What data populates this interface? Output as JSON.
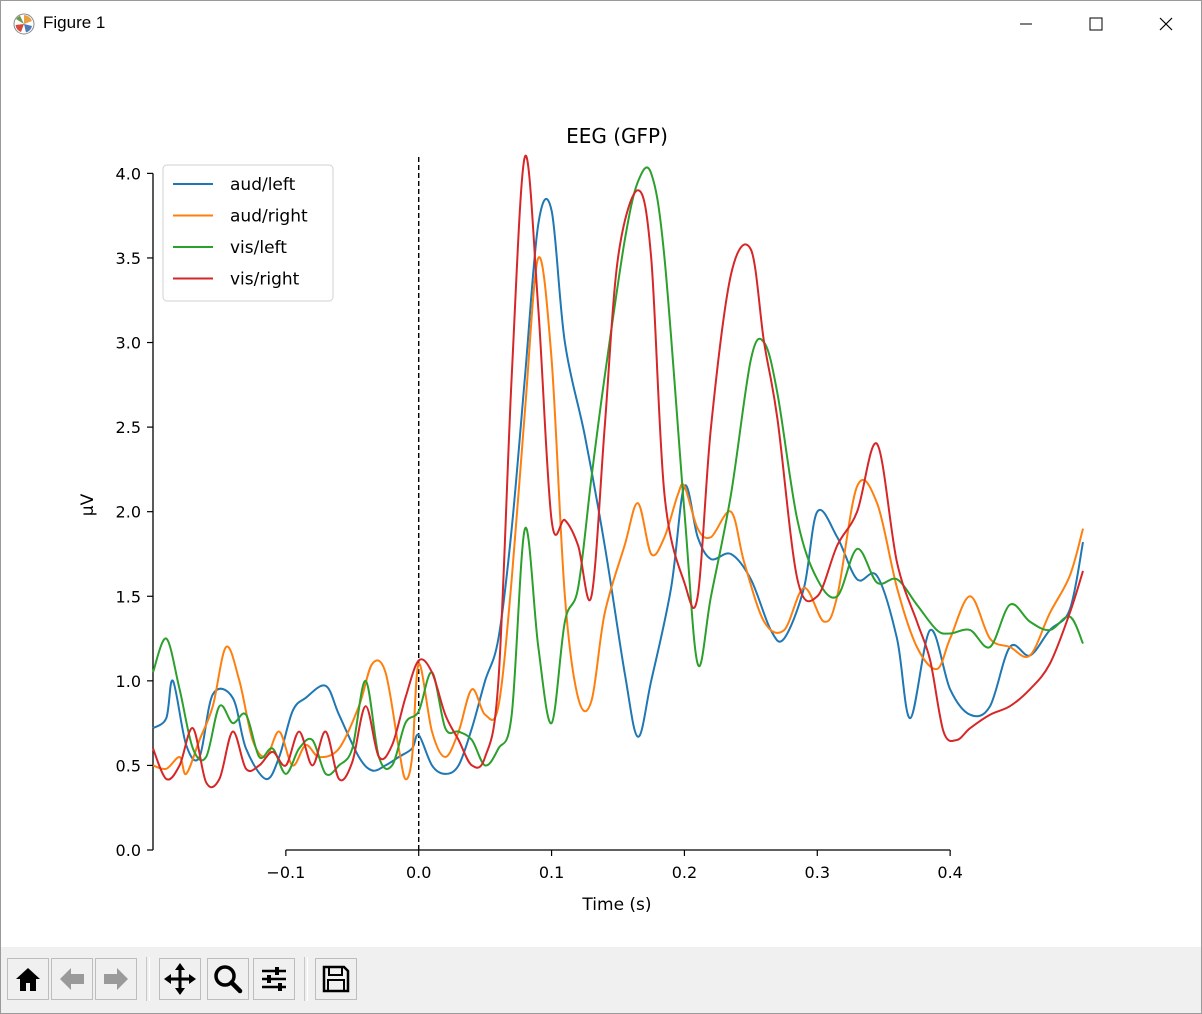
{
  "window": {
    "title": "Figure 1"
  },
  "toolbar": {
    "buttons": [
      {
        "name": "home-icon"
      },
      {
        "name": "back-icon"
      },
      {
        "name": "forward-icon"
      },
      {
        "name": "pan-icon"
      },
      {
        "name": "zoom-icon"
      },
      {
        "name": "configure-subplots-icon"
      },
      {
        "name": "save-icon"
      }
    ]
  },
  "chart_data": {
    "type": "line",
    "title": "EEG (GFP)",
    "xlabel": "Time (s)",
    "ylabel": "µV",
    "xlim": [
      -0.2,
      0.5
    ],
    "ylim": [
      0,
      4.15
    ],
    "xticks": [
      -0.1,
      0.0,
      0.1,
      0.2,
      0.3,
      0.4
    ],
    "xtick_labels": [
      "−0.1",
      "0.0",
      "0.1",
      "0.2",
      "0.3",
      "0.4"
    ],
    "yticks": [
      0.0,
      0.5,
      1.0,
      1.5,
      2.0,
      2.5,
      3.0,
      3.5,
      4.0
    ],
    "ytick_labels": [
      "0.0",
      "0.5",
      "1.0",
      "1.5",
      "2.0",
      "2.5",
      "3.0",
      "3.5",
      "4.0"
    ],
    "vline_x": 0.0,
    "legend_position": "top-left",
    "series": [
      {
        "name": "aud/left",
        "color": "#1f77b4",
        "x": [
          -0.2,
          -0.19,
          -0.185,
          -0.175,
          -0.165,
          -0.155,
          -0.14,
          -0.13,
          -0.115,
          -0.105,
          -0.095,
          -0.085,
          -0.07,
          -0.06,
          -0.045,
          -0.035,
          -0.025,
          -0.015,
          -0.005,
          0.0,
          0.01,
          0.02,
          0.03,
          0.04,
          0.05,
          0.06,
          0.07,
          0.08,
          0.09,
          0.1,
          0.11,
          0.125,
          0.14,
          0.155,
          0.165,
          0.175,
          0.19,
          0.2,
          0.21,
          0.22,
          0.235,
          0.25,
          0.265,
          0.275,
          0.29,
          0.3,
          0.315,
          0.33,
          0.345,
          0.36,
          0.37,
          0.385,
          0.4,
          0.415,
          0.43,
          0.445,
          0.46,
          0.475,
          0.49,
          0.5
        ],
        "y": [
          0.72,
          0.78,
          1.0,
          0.62,
          0.55,
          0.92,
          0.9,
          0.6,
          0.42,
          0.55,
          0.82,
          0.9,
          0.97,
          0.8,
          0.55,
          0.47,
          0.5,
          0.55,
          0.6,
          0.68,
          0.5,
          0.45,
          0.5,
          0.72,
          1.0,
          1.25,
          1.9,
          2.8,
          3.7,
          3.78,
          3.0,
          2.45,
          1.8,
          1.05,
          0.67,
          1.0,
          1.55,
          2.15,
          1.85,
          1.72,
          1.75,
          1.6,
          1.3,
          1.25,
          1.55,
          2.0,
          1.85,
          1.6,
          1.62,
          1.25,
          0.78,
          1.3,
          0.95,
          0.8,
          0.85,
          1.2,
          1.15,
          1.3,
          1.42,
          1.82
        ]
      },
      {
        "name": "aud/right",
        "color": "#ff7f0e",
        "x": [
          -0.2,
          -0.19,
          -0.18,
          -0.175,
          -0.165,
          -0.155,
          -0.145,
          -0.135,
          -0.125,
          -0.115,
          -0.105,
          -0.095,
          -0.085,
          -0.075,
          -0.06,
          -0.045,
          -0.035,
          -0.025,
          -0.015,
          -0.01,
          -0.005,
          0.0,
          0.01,
          0.02,
          0.03,
          0.04,
          0.05,
          0.06,
          0.07,
          0.08,
          0.09,
          0.1,
          0.11,
          0.12,
          0.13,
          0.14,
          0.155,
          0.165,
          0.175,
          0.185,
          0.195,
          0.2,
          0.21,
          0.22,
          0.235,
          0.245,
          0.26,
          0.275,
          0.29,
          0.305,
          0.315,
          0.33,
          0.345,
          0.36,
          0.375,
          0.39,
          0.4,
          0.415,
          0.43,
          0.445,
          0.46,
          0.475,
          0.49,
          0.5
        ],
        "y": [
          0.5,
          0.48,
          0.55,
          0.45,
          0.65,
          0.85,
          1.2,
          1.0,
          0.65,
          0.55,
          0.7,
          0.5,
          0.62,
          0.55,
          0.6,
          0.85,
          1.1,
          1.05,
          0.6,
          0.42,
          0.55,
          1.1,
          0.7,
          0.55,
          0.7,
          0.95,
          0.8,
          0.85,
          1.6,
          2.6,
          3.5,
          2.9,
          1.5,
          0.9,
          0.88,
          1.4,
          1.8,
          2.05,
          1.75,
          1.85,
          2.1,
          2.15,
          1.9,
          1.85,
          2.0,
          1.7,
          1.35,
          1.3,
          1.55,
          1.35,
          1.5,
          2.15,
          2.05,
          1.55,
          1.2,
          1.07,
          1.25,
          1.5,
          1.25,
          1.2,
          1.15,
          1.4,
          1.62,
          1.9
        ]
      },
      {
        "name": "vis/left",
        "color": "#2ca02c",
        "x": [
          -0.2,
          -0.19,
          -0.18,
          -0.17,
          -0.16,
          -0.15,
          -0.14,
          -0.13,
          -0.12,
          -0.11,
          -0.1,
          -0.09,
          -0.08,
          -0.07,
          -0.06,
          -0.05,
          -0.04,
          -0.03,
          -0.02,
          -0.01,
          0.0,
          0.01,
          0.02,
          0.03,
          0.04,
          0.05,
          0.06,
          0.07,
          0.08,
          0.09,
          0.1,
          0.11,
          0.12,
          0.13,
          0.14,
          0.155,
          0.165,
          0.175,
          0.185,
          0.2,
          0.21,
          0.22,
          0.235,
          0.25,
          0.26,
          0.27,
          0.285,
          0.3,
          0.315,
          0.33,
          0.345,
          0.36,
          0.375,
          0.39,
          0.4,
          0.415,
          0.43,
          0.445,
          0.46,
          0.475,
          0.49,
          0.5
        ],
        "y": [
          1.05,
          1.25,
          0.95,
          0.6,
          0.55,
          0.85,
          0.75,
          0.8,
          0.55,
          0.6,
          0.45,
          0.6,
          0.65,
          0.45,
          0.5,
          0.6,
          1.0,
          0.55,
          0.5,
          0.75,
          0.82,
          1.05,
          0.72,
          0.7,
          0.65,
          0.5,
          0.6,
          0.8,
          1.9,
          1.2,
          0.75,
          1.35,
          1.55,
          2.2,
          2.8,
          3.6,
          3.95,
          4.0,
          3.5,
          2.0,
          1.1,
          1.5,
          2.1,
          2.9,
          3.0,
          2.7,
          1.95,
          1.6,
          1.5,
          1.78,
          1.58,
          1.6,
          1.45,
          1.3,
          1.28,
          1.3,
          1.2,
          1.45,
          1.35,
          1.3,
          1.38,
          1.22
        ]
      },
      {
        "name": "vis/right",
        "color": "#d62728",
        "x": [
          -0.2,
          -0.19,
          -0.18,
          -0.17,
          -0.16,
          -0.15,
          -0.14,
          -0.13,
          -0.12,
          -0.11,
          -0.1,
          -0.09,
          -0.08,
          -0.07,
          -0.06,
          -0.05,
          -0.04,
          -0.03,
          -0.02,
          -0.01,
          0.0,
          0.01,
          0.02,
          0.03,
          0.04,
          0.05,
          0.06,
          0.07,
          0.08,
          0.09,
          0.1,
          0.11,
          0.12,
          0.13,
          0.14,
          0.15,
          0.165,
          0.175,
          0.185,
          0.2,
          0.21,
          0.22,
          0.235,
          0.25,
          0.26,
          0.27,
          0.285,
          0.3,
          0.315,
          0.33,
          0.345,
          0.36,
          0.375,
          0.385,
          0.395,
          0.405,
          0.415,
          0.43,
          0.445,
          0.46,
          0.475,
          0.49,
          0.5
        ],
        "y": [
          0.6,
          0.42,
          0.5,
          0.72,
          0.4,
          0.42,
          0.7,
          0.48,
          0.5,
          0.58,
          0.5,
          0.7,
          0.5,
          0.7,
          0.42,
          0.52,
          0.85,
          0.55,
          0.62,
          0.9,
          1.12,
          1.05,
          0.8,
          0.65,
          0.5,
          0.55,
          1.0,
          2.8,
          4.1,
          3.2,
          1.95,
          1.95,
          1.8,
          1.5,
          2.5,
          3.5,
          3.9,
          3.5,
          2.1,
          1.58,
          1.5,
          2.5,
          3.4,
          3.55,
          3.0,
          2.55,
          1.6,
          1.5,
          1.8,
          2.0,
          2.4,
          1.7,
          1.35,
          1.12,
          0.7,
          0.65,
          0.72,
          0.8,
          0.85,
          0.95,
          1.1,
          1.4,
          1.65
        ]
      }
    ]
  }
}
